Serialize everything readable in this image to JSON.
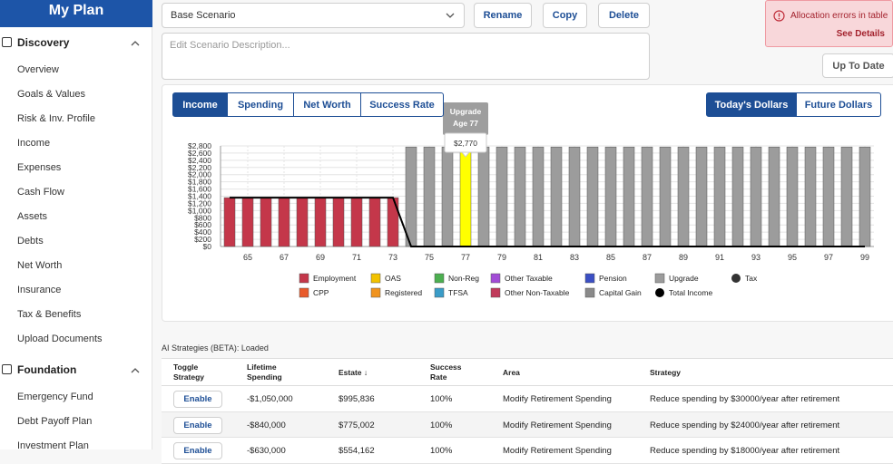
{
  "sidebar": {
    "title": "My Plan",
    "sections": [
      {
        "title": "Discovery",
        "items": [
          "Overview",
          "Goals & Values",
          "Risk & Inv. Profile",
          "Income",
          "Expenses",
          "Cash Flow",
          "Assets",
          "Debts",
          "Net Worth",
          "Insurance",
          "Tax & Benefits",
          "Upload Documents"
        ]
      },
      {
        "title": "Foundation",
        "items": [
          "Emergency Fund",
          "Debt Payoff Plan",
          "Investment Plan"
        ]
      }
    ]
  },
  "scenario": {
    "selected": "Base Scenario",
    "buttons": [
      "Rename",
      "Copy",
      "Delete"
    ],
    "description_placeholder": "Edit Scenario Description..."
  },
  "alert": {
    "message": "Allocation errors in table",
    "link": "See Details"
  },
  "status_button": "Up To Date",
  "tabs": {
    "views": [
      "Income",
      "Spending",
      "Net Worth",
      "Success Rate"
    ],
    "active_view": 0,
    "dollars": [
      "Today's Dollars",
      "Future Dollars"
    ],
    "active_dollars": 0
  },
  "chart_data": {
    "type": "bar",
    "stacked": true,
    "grid": true,
    "x": [
      64,
      65,
      66,
      67,
      68,
      69,
      70,
      71,
      72,
      73,
      74,
      75,
      76,
      77,
      78,
      79,
      80,
      81,
      82,
      83,
      84,
      85,
      86,
      87,
      88,
      89,
      90,
      91,
      92,
      93,
      94,
      95,
      96,
      97,
      98,
      99
    ],
    "xlim": [
      63.5,
      99.5
    ],
    "xticks": [
      65,
      67,
      69,
      71,
      73,
      75,
      77,
      79,
      81,
      83,
      85,
      87,
      89,
      91,
      93,
      95,
      97,
      99
    ],
    "ylim": [
      0,
      2800
    ],
    "yticks": [
      {
        "value": 0,
        "label": "$0"
      },
      {
        "value": 200,
        "label": "$200"
      },
      {
        "value": 400,
        "label": "$400"
      },
      {
        "value": 600,
        "label": "$600"
      },
      {
        "value": 800,
        "label": "$800"
      },
      {
        "value": 1000,
        "label": "$1,000"
      },
      {
        "value": 1200,
        "label": "$1,200"
      },
      {
        "value": 1400,
        "label": "$1,400"
      },
      {
        "value": 1600,
        "label": "$1,600"
      },
      {
        "value": 1800,
        "label": "$1,800"
      },
      {
        "value": 2000,
        "label": "$2,000"
      },
      {
        "value": 2200,
        "label": "$2,200"
      },
      {
        "value": 2400,
        "label": "$2,400"
      },
      {
        "value": 2600,
        "label": "$2,600"
      },
      {
        "value": 2800,
        "label": "$2,800"
      }
    ],
    "series": [
      {
        "name": "Employment",
        "color": "#c4374a",
        "marker": "square",
        "values": [
          1360,
          1360,
          1360,
          1360,
          1360,
          1360,
          1360,
          1360,
          1360,
          1360,
          null,
          null,
          null,
          null,
          null,
          null,
          null,
          null,
          null,
          null,
          null,
          null,
          null,
          null,
          null,
          null,
          null,
          null,
          null,
          null,
          null,
          null,
          null,
          null,
          null,
          null
        ]
      },
      {
        "name": "CPP",
        "color": "#e85a2a",
        "marker": "square"
      },
      {
        "name": "OAS",
        "color": "#f2c200",
        "marker": "square"
      },
      {
        "name": "Registered",
        "color": "#f0931e",
        "marker": "square"
      },
      {
        "name": "Non-Reg",
        "color": "#4caf50",
        "marker": "square"
      },
      {
        "name": "TFSA",
        "color": "#3a9cc8",
        "marker": "square"
      },
      {
        "name": "Other Taxable",
        "color": "#a24cd6",
        "marker": "square"
      },
      {
        "name": "Other Non-Taxable",
        "color": "#c03a5a",
        "marker": "square"
      },
      {
        "name": "Pension",
        "color": "#3b4fc4",
        "marker": "square"
      },
      {
        "name": "Capital Gain",
        "color": "#8a8a8a",
        "marker": "square"
      },
      {
        "name": "Upgrade",
        "color": "#9c9c9c",
        "marker": "square",
        "values": [
          null,
          null,
          null,
          null,
          null,
          null,
          null,
          null,
          null,
          null,
          2770,
          2770,
          2770,
          2770,
          2770,
          2770,
          2770,
          2770,
          2770,
          2770,
          2770,
          2770,
          2770,
          2770,
          2770,
          2770,
          2770,
          2770,
          2770,
          2770,
          2770,
          2770,
          2770,
          2770,
          2770,
          2770
        ]
      },
      {
        "name": "Total Income",
        "color": "#000000",
        "marker": "circle",
        "kind": "line",
        "values": [
          1360,
          1360,
          1360,
          1360,
          1360,
          1360,
          1360,
          1360,
          1360,
          1360,
          0,
          0,
          0,
          0,
          0,
          0,
          0,
          0,
          0,
          0,
          0,
          0,
          0,
          0,
          0,
          0,
          0,
          0,
          0,
          0,
          0,
          0,
          0,
          0,
          0,
          0
        ]
      },
      {
        "name": "Tax",
        "color": "#333333",
        "marker": "circle"
      }
    ],
    "highlight": {
      "series": 10,
      "index": 13,
      "color": "#ffff00"
    },
    "tooltip": {
      "label": "Age 77",
      "value_label": "$2,770"
    }
  },
  "strategies": {
    "status": "AI Strategies (BETA): Loaded",
    "columns": [
      "Toggle Strategy",
      "Lifetime Spending",
      "Estate",
      "Success Rate",
      "Area",
      "Strategy"
    ],
    "rows": [
      [
        "Enable",
        "-$1,050,000",
        "$995,836",
        "100%",
        "Modify Retirement Spending",
        "Reduce spending by $30000/year after retirement"
      ],
      [
        "Enable",
        "-$840,000",
        "$775,002",
        "100%",
        "Modify Retirement Spending",
        "Reduce spending by $24000/year after retirement"
      ],
      [
        "Enable",
        "-$630,000",
        "$554,162",
        "100%",
        "Modify Retirement Spending",
        "Reduce spending by $18000/year after retirement"
      ]
    ]
  }
}
